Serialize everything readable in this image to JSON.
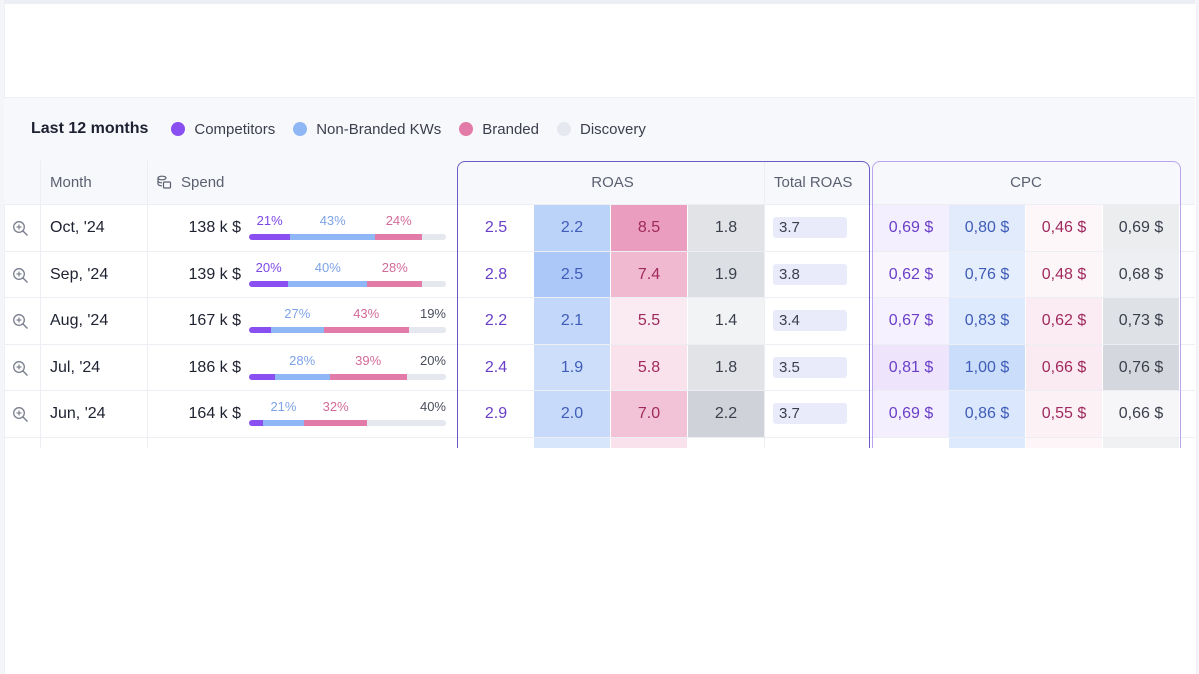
{
  "legend": {
    "title": "Last 12 months",
    "items": [
      {
        "label": "Competitors",
        "color": "#8a4ff0"
      },
      {
        "label": "Non-Branded KWs",
        "color": "#8fb6f5"
      },
      {
        "label": "Branded",
        "color": "#e27ba7"
      },
      {
        "label": "Discovery",
        "color": "#e6e8ef"
      }
    ]
  },
  "table": {
    "headers": {
      "month": "Month",
      "spend": "Spend",
      "roas": "ROAS",
      "total_roas": "Total ROAS",
      "cpc": "CPC"
    },
    "rows": [
      {
        "month": "Oct, '24",
        "spend": "138 k $",
        "shares": [
          21,
          43,
          24,
          12
        ],
        "labels": [
          "21%",
          "43%",
          "24%",
          ""
        ],
        "roas": [
          "2.5",
          "2.2",
          "8.5",
          "1.8"
        ],
        "total_roas": "3.7",
        "cpc": [
          "0,69 $",
          "0,80 $",
          "0,46 $",
          "0,69 $"
        ]
      },
      {
        "month": "Sep, '24",
        "spend": "139 k $",
        "shares": [
          20,
          40,
          28,
          12
        ],
        "labels": [
          "20%",
          "40%",
          "28%",
          ""
        ],
        "roas": [
          "2.8",
          "2.5",
          "7.4",
          "1.9"
        ],
        "total_roas": "3.8",
        "cpc": [
          "0,62 $",
          "0,76 $",
          "0,48 $",
          "0,68 $"
        ]
      },
      {
        "month": "Aug, '24",
        "spend": "167 k $",
        "shares": [
          11,
          27,
          43,
          19
        ],
        "labels": [
          "",
          "27%",
          "43%",
          "19%"
        ],
        "roas": [
          "2.2",
          "2.1",
          "5.5",
          "1.4"
        ],
        "total_roas": "3.4",
        "cpc": [
          "0,67 $",
          "0,83 $",
          "0,62 $",
          "0,73 $"
        ]
      },
      {
        "month": "Jul, '24",
        "spend": "186 k $",
        "shares": [
          13,
          28,
          39,
          20
        ],
        "labels": [
          "",
          "28%",
          "39%",
          "20%"
        ],
        "roas": [
          "2.4",
          "1.9",
          "5.8",
          "1.8"
        ],
        "total_roas": "3.5",
        "cpc": [
          "0,81 $",
          "1,00 $",
          "0,66 $",
          "0,76 $"
        ]
      },
      {
        "month": "Jun, '24",
        "spend": "164 k $",
        "shares": [
          7,
          21,
          32,
          40
        ],
        "labels": [
          "",
          "21%",
          "32%",
          "40%"
        ],
        "roas": [
          "2.9",
          "2.0",
          "7.0",
          "2.2"
        ],
        "total_roas": "3.7",
        "cpc": [
          "0,69 $",
          "0,86 $",
          "0,55 $",
          "0,66 $"
        ]
      }
    ]
  },
  "colors": {
    "competitors": "#8a4ff0",
    "non_branded": "#8fb6f5",
    "branded": "#e27ba7",
    "discovery": "#e6e8ef",
    "competitors_text": "#6a3fc8",
    "non_branded_text": "#3f5db8",
    "branded_text": "#a02a5e",
    "discovery_text": "#3b3f4c"
  }
}
